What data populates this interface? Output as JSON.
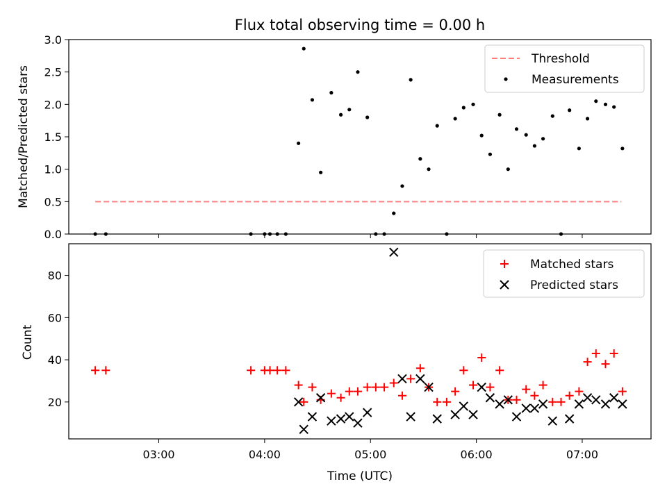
{
  "title": "Flux total observing time = 0.00 h",
  "chart_data": [
    {
      "type": "scatter",
      "ylabel": "Matched/Predicted stars",
      "xlim": [
        2.15,
        7.65
      ],
      "ylim": [
        0,
        3.0
      ],
      "y_ticks": [
        0.0,
        0.5,
        1.0,
        1.5,
        2.0,
        2.5,
        3.0
      ],
      "y_tick_labels": [
        "0.0",
        "0.5",
        "1.0",
        "1.5",
        "2.0",
        "2.5",
        "3.0"
      ],
      "legend_position": "top-right",
      "threshold": {
        "name": "Threshold",
        "value": 0.5,
        "x_range": [
          2.4,
          7.37
        ],
        "color": "#ff7f7f"
      },
      "measurements": {
        "name": "Measurements",
        "color": "#000000",
        "points": [
          [
            2.4,
            0.0
          ],
          [
            2.5,
            0.0
          ],
          [
            3.87,
            0.0
          ],
          [
            4.0,
            0.0
          ],
          [
            4.05,
            0.0
          ],
          [
            4.12,
            0.0
          ],
          [
            4.2,
            0.0
          ],
          [
            4.32,
            1.4
          ],
          [
            4.37,
            2.86
          ],
          [
            4.45,
            2.07
          ],
          [
            4.53,
            0.95
          ],
          [
            4.63,
            2.18
          ],
          [
            4.72,
            1.84
          ],
          [
            4.8,
            1.92
          ],
          [
            4.88,
            2.5
          ],
          [
            4.97,
            1.8
          ],
          [
            5.05,
            0.0
          ],
          [
            5.13,
            0.0
          ],
          [
            5.22,
            0.32
          ],
          [
            5.3,
            0.74
          ],
          [
            5.38,
            2.38
          ],
          [
            5.47,
            1.16
          ],
          [
            5.55,
            1.0
          ],
          [
            5.63,
            1.67
          ],
          [
            5.72,
            0.0
          ],
          [
            5.8,
            1.78
          ],
          [
            5.88,
            1.95
          ],
          [
            5.97,
            2.0
          ],
          [
            6.05,
            1.52
          ],
          [
            6.13,
            1.23
          ],
          [
            6.22,
            1.84
          ],
          [
            6.3,
            1.0
          ],
          [
            6.38,
            1.62
          ],
          [
            6.47,
            1.53
          ],
          [
            6.55,
            1.36
          ],
          [
            6.63,
            1.47
          ],
          [
            6.72,
            1.82
          ],
          [
            6.8,
            0.0
          ],
          [
            6.88,
            1.91
          ],
          [
            6.97,
            1.32
          ],
          [
            7.05,
            1.78
          ],
          [
            7.13,
            2.05
          ],
          [
            7.22,
            2.0
          ],
          [
            7.3,
            1.96
          ],
          [
            7.38,
            1.32
          ]
        ]
      }
    },
    {
      "type": "scatter",
      "xlabel": "Time (UTC)",
      "ylabel": "Count",
      "xlim": [
        2.15,
        7.65
      ],
      "ylim": [
        2.5,
        95
      ],
      "y_ticks": [
        20,
        40,
        60,
        80
      ],
      "y_tick_labels": [
        "20",
        "40",
        "60",
        "80"
      ],
      "x_ticks": [
        3,
        4,
        5,
        6,
        7
      ],
      "x_tick_labels": [
        "03:00",
        "04:00",
        "05:00",
        "06:00",
        "07:00"
      ],
      "legend_position": "top-right",
      "series": [
        {
          "name": "Matched stars",
          "marker": "plus",
          "color": "#ff0000",
          "points": [
            [
              2.4,
              35
            ],
            [
              2.5,
              35
            ],
            [
              3.87,
              35
            ],
            [
              4.0,
              35
            ],
            [
              4.05,
              35
            ],
            [
              4.12,
              35
            ],
            [
              4.2,
              35
            ],
            [
              4.32,
              28
            ],
            [
              4.37,
              20
            ],
            [
              4.45,
              27
            ],
            [
              4.53,
              21
            ],
            [
              4.63,
              24
            ],
            [
              4.72,
              22
            ],
            [
              4.8,
              25
            ],
            [
              4.88,
              25
            ],
            [
              4.97,
              27
            ],
            [
              5.05,
              27
            ],
            [
              5.13,
              27
            ],
            [
              5.22,
              29
            ],
            [
              5.3,
              23
            ],
            [
              5.38,
              31
            ],
            [
              5.47,
              36
            ],
            [
              5.55,
              27
            ],
            [
              5.63,
              20
            ],
            [
              5.72,
              20
            ],
            [
              5.8,
              25
            ],
            [
              5.88,
              35
            ],
            [
              5.97,
              28
            ],
            [
              6.05,
              41
            ],
            [
              6.13,
              27
            ],
            [
              6.22,
              35
            ],
            [
              6.3,
              21
            ],
            [
              6.38,
              21
            ],
            [
              6.47,
              26
            ],
            [
              6.55,
              23
            ],
            [
              6.63,
              28
            ],
            [
              6.72,
              20
            ],
            [
              6.8,
              20
            ],
            [
              6.88,
              23
            ],
            [
              6.97,
              25
            ],
            [
              7.05,
              39
            ],
            [
              7.13,
              43
            ],
            [
              7.22,
              38
            ],
            [
              7.3,
              43
            ],
            [
              7.38,
              25
            ]
          ]
        },
        {
          "name": "Predicted stars",
          "marker": "x",
          "color": "#000000",
          "points": [
            [
              4.32,
              20
            ],
            [
              4.37,
              7
            ],
            [
              4.45,
              13
            ],
            [
              4.53,
              22
            ],
            [
              4.63,
              11
            ],
            [
              4.72,
              12
            ],
            [
              4.8,
              13
            ],
            [
              4.88,
              10
            ],
            [
              4.97,
              15
            ],
            [
              5.22,
              91
            ],
            [
              5.3,
              31
            ],
            [
              5.38,
              13
            ],
            [
              5.47,
              31
            ],
            [
              5.55,
              27
            ],
            [
              5.63,
              12
            ],
            [
              5.8,
              14
            ],
            [
              5.88,
              18
            ],
            [
              5.97,
              14
            ],
            [
              6.05,
              27
            ],
            [
              6.13,
              22
            ],
            [
              6.22,
              19
            ],
            [
              6.3,
              21
            ],
            [
              6.38,
              13
            ],
            [
              6.47,
              17
            ],
            [
              6.55,
              17
            ],
            [
              6.63,
              19
            ],
            [
              6.72,
              11
            ],
            [
              6.88,
              12
            ],
            [
              6.97,
              19
            ],
            [
              7.05,
              22
            ],
            [
              7.13,
              21
            ],
            [
              7.22,
              19
            ],
            [
              7.3,
              22
            ],
            [
              7.38,
              19
            ]
          ]
        }
      ]
    }
  ]
}
